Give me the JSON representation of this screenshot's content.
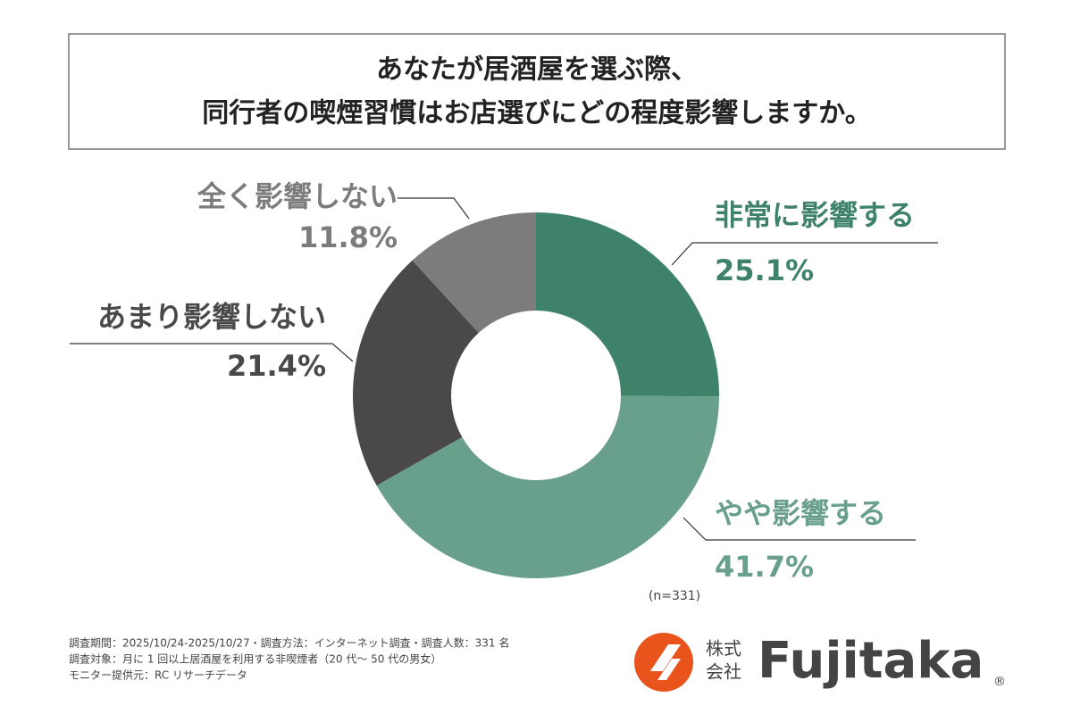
{
  "chart_data": {
    "type": "pie",
    "donut": true,
    "title_lines": [
      "あなたが居酒屋を選ぶ際、",
      "同行者の喫煙習慣はお店選びにどの程度影響しますか。"
    ],
    "categories": [
      "非常に影響する",
      "やや影響する",
      "あまり影響しない",
      "全く影響しない"
    ],
    "values": [
      25.1,
      41.7,
      21.4,
      11.8
    ],
    "value_labels": [
      "25.1%",
      "41.7%",
      "21.4%",
      "11.8%"
    ],
    "colors": [
      "#3f826a",
      "#68a08b",
      "#4a484b",
      "#7d7b7e"
    ],
    "sample_note": "(n=331)"
  },
  "footer": {
    "notes": [
      "調査期間：2025/10/24-2025/10/27・調査方法：インターネット調査・調査人数：331 名",
      "調査対象：月に 1 回以上居酒屋を利用する非喫煙者（20 代〜 50 代の男女）",
      "モニター提供元：RC リサーチデータ"
    ],
    "brand": {
      "small_text_lines": [
        "株式",
        "会社"
      ],
      "name": "Fujitaka",
      "registered": "®"
    }
  }
}
